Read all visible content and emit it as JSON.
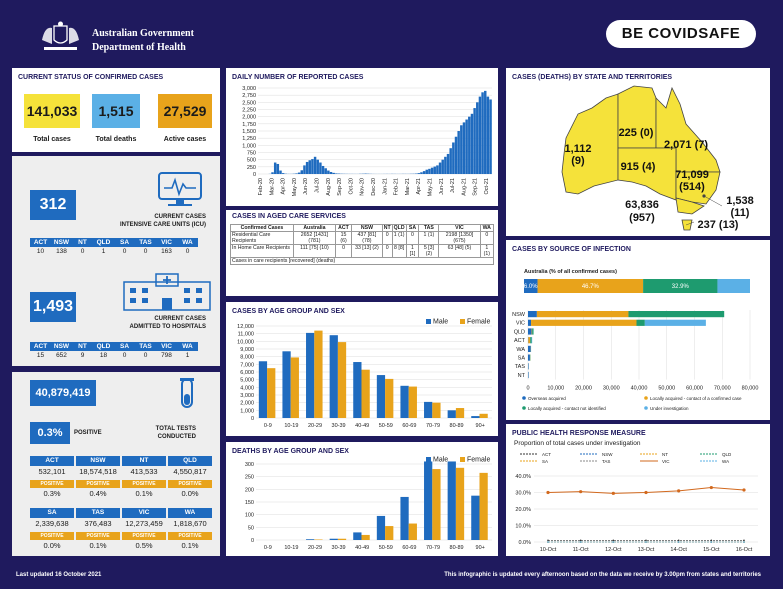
{
  "header": {
    "gov_line1": "Australian Government",
    "gov_line2": "Department of Health",
    "campaign": "BE COVIDSAFE"
  },
  "status": {
    "title": "CURRENT STATUS OF CONFIRMED CASES",
    "total_cases": "141,033",
    "total_cases_label": "Total cases",
    "total_deaths": "1,515",
    "total_deaths_label": "Total deaths",
    "active_cases": "27,529",
    "active_cases_label": "Active cases"
  },
  "icu": {
    "value": "312",
    "label_line1": "CURRENT CASES",
    "label_line2": "INTENSIVE CARE UNITS (ICU)",
    "states": [
      "ACT",
      "NSW",
      "NT",
      "QLD",
      "SA",
      "TAS",
      "VIC",
      "WA"
    ],
    "values": [
      "10",
      "138",
      "0",
      "1",
      "0",
      "0",
      "163",
      "0"
    ]
  },
  "hosp": {
    "value": "1,493",
    "label_line1": "CURRENT CASES",
    "label_line2": "ADMITTED TO HOSPITALS",
    "states": [
      "ACT",
      "NSW",
      "NT",
      "QLD",
      "SA",
      "TAS",
      "VIC",
      "WA"
    ],
    "values": [
      "15",
      "652",
      "9",
      "18",
      "0",
      "0",
      "798",
      "1"
    ]
  },
  "tests": {
    "value": "40,879,419",
    "positive_pct": "0.3%",
    "positive_label": "POSITIVE",
    "label_line1": "TOTAL TESTS",
    "label_line2": "CONDUCTED",
    "positive_tag": "POSITIVE",
    "states": [
      {
        "s": "ACT",
        "v": "532,101",
        "p": "0.3%"
      },
      {
        "s": "NSW",
        "v": "18,574,518",
        "p": "0.4%"
      },
      {
        "s": "NT",
        "v": "413,533",
        "p": "0.1%"
      },
      {
        "s": "QLD",
        "v": "4,550,817",
        "p": "0.0%"
      },
      {
        "s": "SA",
        "v": "2,339,638",
        "p": "0.0%"
      },
      {
        "s": "TAS",
        "v": "376,483",
        "p": "0.1%"
      },
      {
        "s": "VIC",
        "v": "12,273,459",
        "p": "0.5%"
      },
      {
        "s": "WA",
        "v": "1,818,670",
        "p": "0.1%"
      }
    ]
  },
  "daily": {
    "title": "DAILY NUMBER OF REPORTED CASES"
  },
  "aged": {
    "title": "CASES IN AGED CARE SERVICES",
    "header": [
      "Confirmed Cases",
      "Australia",
      "ACT",
      "NSW",
      "NT",
      "QLD",
      "SA",
      "TAS",
      "VIC",
      "WA"
    ],
    "rows": [
      [
        "Residential Care Recipients",
        "2652 [1431] (781)",
        "15 (6)",
        "437 [81] (78)",
        "0",
        "1 (1)",
        "0",
        "1 (1)",
        "2198 [1350] (675)",
        "0"
      ],
      [
        "In Home Care Recipients",
        "111 [75] (10)",
        "0",
        "33 [13] (2)",
        "0",
        "8 [8]",
        "1 [1]",
        "5 [3] (2)",
        "63 [48] (5)",
        "1 (1)"
      ]
    ],
    "note": "Cases in care recipients [recovered] (deaths)"
  },
  "map": {
    "title": "CASES (DEATHS) BY STATE AND TERRITORIES",
    "wa": "1,112",
    "wa_d": "(9)",
    "nt": "225 (0)",
    "qld": "2,071 (7)",
    "sa": "915 (4)",
    "nsw": "71,099",
    "nsw_d": "(514)",
    "act": "1,538",
    "act_d": "(11)",
    "vic": "63,836",
    "vic_d": "(957)",
    "tas": "237 (13)"
  },
  "source": {
    "title": "CASES BY SOURCE OF INFECTION",
    "subtitle": "Australia (% of all confirmed cases)",
    "pct_overseas": "6.0%",
    "pct_local_contact": "46.7%",
    "pct_local_known": "32.9%",
    "legend": [
      "Overseas acquired",
      "Locally acquired - contact of a confirmed case",
      "Locally acquired - contact not identified",
      "Under investigation"
    ]
  },
  "health": {
    "title": "PUBLIC HEALTH RESPONSE MEASURE",
    "subtitle": "Proportion of total cases under investigation"
  },
  "footer": {
    "left": "Last updated 16 October 2021",
    "right": "This infographic is updated every afternoon based on the data we receive by 3.00pm from states and territories"
  },
  "colors": {
    "navy": "#1f1a5e",
    "blue": "#1f6bbf",
    "orange": "#e8a31b",
    "yellow": "#f5e23a",
    "green": "#1e9b6f",
    "ltblue": "#5bb0e6"
  },
  "chart_data": [
    {
      "type": "bar",
      "title": "DAILY NUMBER OF REPORTED CASES",
      "ylim": [
        0,
        3000
      ],
      "yticks": [
        "3,000",
        "2,750",
        "2,500",
        "2,250",
        "2,000",
        "1,750",
        "1,500",
        "1,250",
        "1,000",
        "750",
        "500",
        "250",
        "0"
      ],
      "xticks": [
        "Feb-20",
        "Mar-20",
        "Apr-20",
        "May-20",
        "Jun-20",
        "Jul-20",
        "Aug-20",
        "Sep-20",
        "Oct-20",
        "Nov-20",
        "Dec-20",
        "Jan-21",
        "Feb-21",
        "Mar-21",
        "Apr-21",
        "May-21",
        "Jun-21",
        "Jul-21",
        "Aug-21",
        "Sep-21",
        "Oct-21"
      ],
      "values": [
        0,
        0,
        0,
        0,
        5,
        60,
        400,
        350,
        120,
        30,
        10,
        5,
        5,
        10,
        20,
        50,
        130,
        300,
        420,
        480,
        520,
        600,
        500,
        400,
        280,
        200,
        120,
        70,
        40,
        20,
        15,
        10,
        8,
        6,
        5,
        5,
        4,
        4,
        8,
        10,
        15,
        10,
        6,
        4,
        3,
        3,
        3,
        4,
        5,
        4,
        6,
        5,
        4,
        4,
        6,
        6,
        5,
        8,
        10,
        15,
        30,
        60,
        100,
        150,
        180,
        220,
        260,
        300,
        400,
        500,
        600,
        700,
        900,
        1100,
        1300,
        1500,
        1700,
        1800,
        1900,
        2000,
        2100,
        2300,
        2500,
        2700,
        2850,
        2900,
        2700,
        2600
      ]
    },
    {
      "type": "bar",
      "title": "CASES BY AGE GROUP AND SEX",
      "series": [
        {
          "name": "Male",
          "values": [
            7400,
            8700,
            11100,
            10800,
            7300,
            5600,
            4200,
            2100,
            1000,
            250
          ]
        },
        {
          "name": "Female",
          "values": [
            6500,
            7900,
            11400,
            9900,
            6300,
            5100,
            4100,
            2000,
            1300,
            550
          ]
        }
      ],
      "categories": [
        "0-9",
        "10-19",
        "20-29",
        "30-39",
        "40-49",
        "50-59",
        "60-69",
        "70-79",
        "80-89",
        "90+"
      ],
      "ylim": [
        0,
        12000
      ],
      "yticks": [
        "12,000",
        "11,000",
        "10,000",
        "9,000",
        "8,000",
        "7,000",
        "6,000",
        "5,000",
        "4,000",
        "3,000",
        "2,000",
        "1,000",
        "0"
      ]
    },
    {
      "type": "bar",
      "title": "DEATHS BY AGE GROUP AND SEX",
      "series": [
        {
          "name": "Male",
          "values": [
            0,
            0,
            3,
            5,
            30,
            95,
            170,
            310,
            310,
            175
          ]
        },
        {
          "name": "Female",
          "values": [
            0,
            0,
            2,
            5,
            20,
            55,
            65,
            280,
            285,
            265
          ]
        }
      ],
      "categories": [
        "0-9",
        "10-19",
        "20-29",
        "30-39",
        "40-49",
        "50-59",
        "60-69",
        "70-79",
        "80-89",
        "90+"
      ],
      "ylim": [
        0,
        300
      ],
      "yticks": [
        "300",
        "250",
        "200",
        "150",
        "100",
        "50",
        "0"
      ]
    },
    {
      "type": "bar",
      "title": "CASES BY SOURCE OF INFECTION",
      "categories": [
        "NSW",
        "VIC",
        "QLD",
        "ACT",
        "WA",
        "SA",
        "TAS",
        "NT"
      ],
      "series": [
        {
          "name": "Overseas acquired",
          "values": [
            3200,
            1100,
            1300,
            100,
            1000,
            700,
            200,
            200
          ]
        },
        {
          "name": "Locally acquired - contact of a confirmed case",
          "values": [
            33000,
            38000,
            200,
            700,
            50,
            100,
            20,
            15
          ]
        },
        {
          "name": "Locally acquired - contact not identified",
          "values": [
            34500,
            3000,
            500,
            500,
            50,
            100,
            15,
            10
          ]
        },
        {
          "name": "Under investigation",
          "values": [
            0,
            22000,
            0,
            200,
            0,
            0,
            0,
            0
          ]
        }
      ],
      "xticks": [
        "0",
        "10,000",
        "20,000",
        "30,000",
        "40,000",
        "50,000",
        "60,000",
        "70,000",
        "80,000"
      ],
      "xlim": [
        0,
        80000
      ]
    },
    {
      "type": "line",
      "title": "PUBLIC HEALTH RESPONSE MEASURE",
      "x": [
        "10-Oct",
        "11-Oct",
        "12-Oct",
        "13-Oct",
        "14-Oct",
        "15-Oct",
        "16-Oct"
      ],
      "ylim": [
        0,
        40
      ],
      "yticks": [
        "40.0%",
        "30.0%",
        "20.0%",
        "10.0%",
        "0.0%"
      ],
      "series": [
        {
          "name": "ACT",
          "values": [
            1,
            1,
            1,
            1,
            1,
            1,
            1
          ]
        },
        {
          "name": "NSW",
          "values": [
            0,
            0,
            0,
            0,
            0,
            0,
            0
          ]
        },
        {
          "name": "NT",
          "values": [
            0,
            0,
            0,
            0,
            0,
            0,
            0
          ]
        },
        {
          "name": "QLD",
          "values": [
            0,
            0,
            0,
            0,
            0,
            0,
            0
          ]
        },
        {
          "name": "SA",
          "values": [
            0,
            0,
            0,
            0,
            0,
            0,
            0
          ]
        },
        {
          "name": "TAS",
          "values": [
            0,
            0,
            0,
            0,
            0,
            0,
            0
          ]
        },
        {
          "name": "VIC",
          "values": [
            30,
            30.5,
            29.5,
            30,
            31,
            33,
            31.5
          ]
        },
        {
          "name": "WA",
          "values": [
            0,
            0,
            0,
            0,
            0,
            0,
            0
          ]
        }
      ]
    }
  ]
}
